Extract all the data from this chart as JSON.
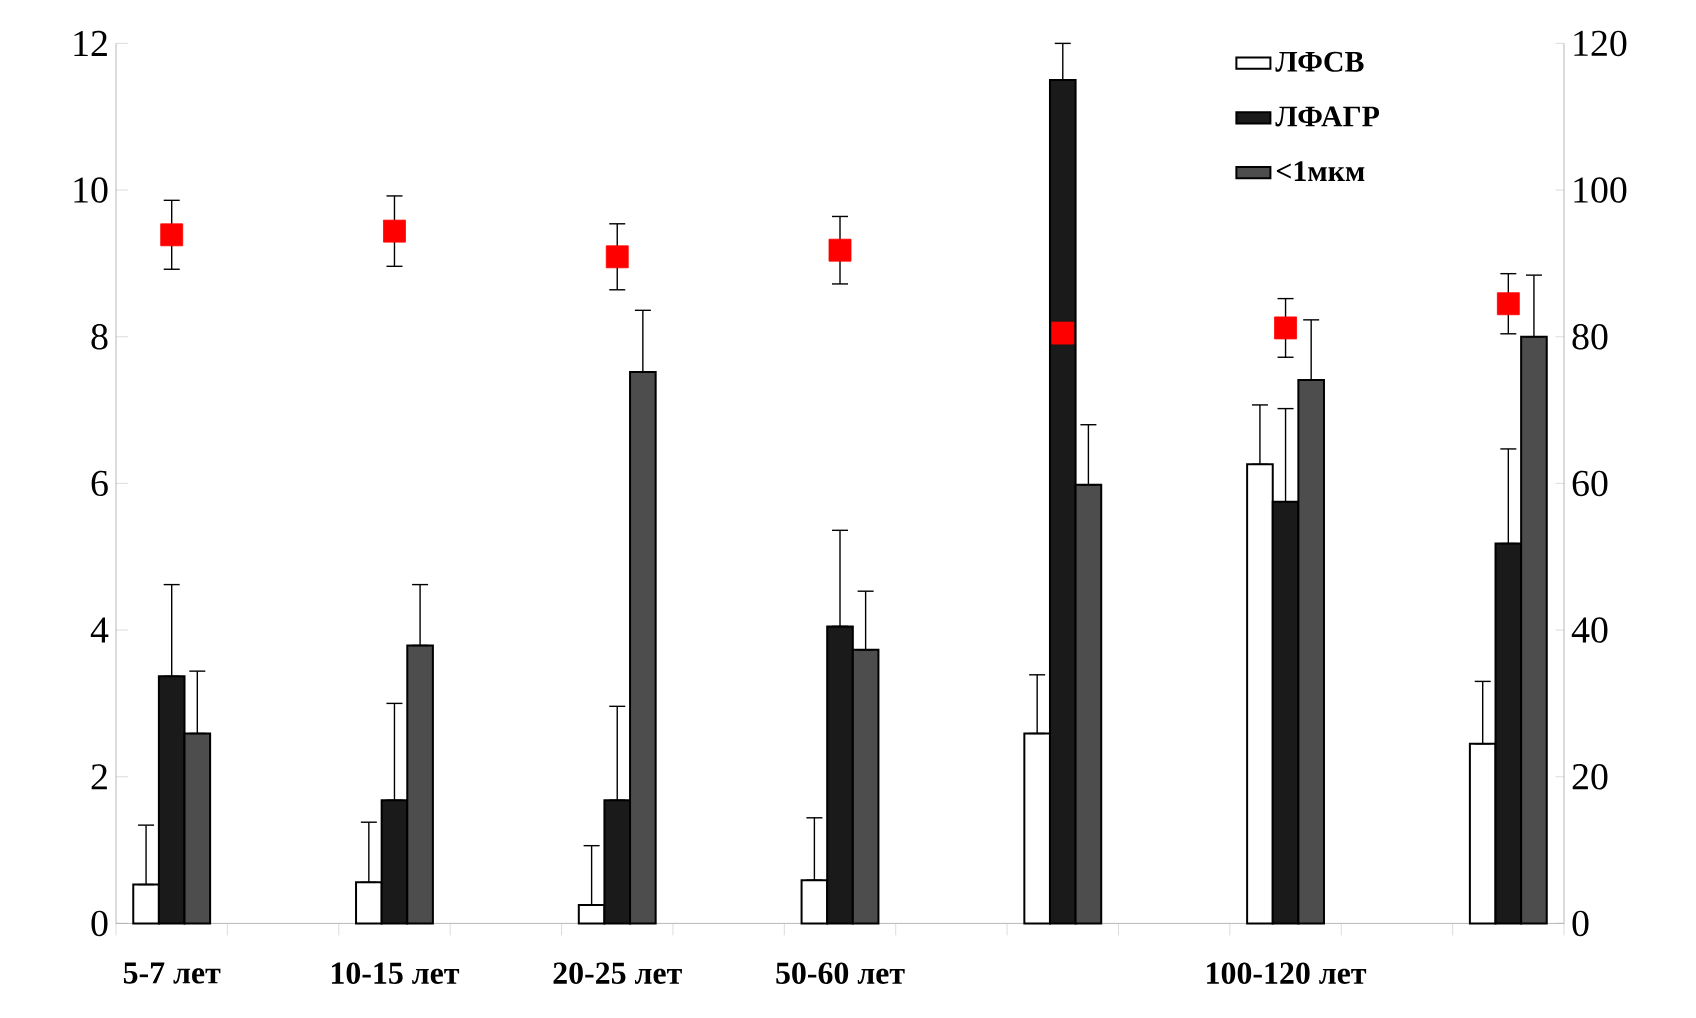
{
  "chart_data": {
    "type": "bar",
    "categories": [
      "5-7 лет",
      null,
      "10-15 лет",
      null,
      "20-25 лет",
      null,
      "50-60 лет",
      null,
      null,
      null,
      "100-120 лет",
      null,
      null
    ],
    "series": [
      {
        "name": "ЛФСВ",
        "color": "#ffffff",
        "values": [
          0.53,
          null,
          0.56,
          null,
          0.25,
          null,
          0.59,
          null,
          2.59,
          null,
          6.26,
          null,
          2.45
        ],
        "errors": [
          [
            0.53,
            1.34
          ],
          null,
          [
            0.56,
            1.38
          ],
          null,
          [
            0.25,
            1.06
          ],
          null,
          [
            0.59,
            1.44
          ],
          null,
          [
            2.59,
            3.39
          ],
          null,
          [
            6.26,
            7.07
          ],
          null,
          [
            2.45,
            3.3
          ]
        ]
      },
      {
        "name": "ЛФАГР",
        "color": "#1a1a1a",
        "values": [
          3.37,
          null,
          1.68,
          null,
          1.68,
          null,
          4.05,
          null,
          11.5,
          null,
          5.75,
          null,
          5.18
        ],
        "errors": [
          [
            3.37,
            4.62
          ],
          null,
          [
            1.68,
            3.0
          ],
          null,
          [
            1.68,
            2.96
          ],
          null,
          [
            4.05,
            5.36
          ],
          null,
          [
            11.5,
            12.0
          ],
          null,
          [
            5.75,
            7.02
          ],
          null,
          [
            5.18,
            6.47
          ]
        ]
      },
      {
        "name": "<1мкм",
        "color": "#4d4d4d",
        "values": [
          2.59,
          null,
          3.79,
          null,
          7.52,
          null,
          3.73,
          null,
          5.98,
          null,
          7.41,
          null,
          8.0
        ],
        "errors": [
          [
            2.59,
            3.44
          ],
          null,
          [
            3.79,
            4.62
          ],
          null,
          [
            7.52,
            8.36
          ],
          null,
          [
            3.73,
            4.53
          ],
          null,
          [
            5.98,
            6.8
          ],
          null,
          [
            7.41,
            8.23
          ],
          null,
          [
            8.0,
            8.84
          ]
        ]
      },
      {
        "type": "scatter",
        "axis": "y2",
        "marker": "square",
        "color": "#ff0000",
        "values": [
          93.9,
          null,
          94.4,
          null,
          90.9,
          null,
          91.8,
          null,
          80.5,
          null,
          81.2,
          null,
          84.5
        ],
        "errors": [
          [
            89.2,
            98.6
          ],
          null,
          [
            89.6,
            99.2
          ],
          null,
          [
            86.4,
            95.4
          ],
          null,
          [
            87.2,
            96.4
          ],
          null,
          null,
          null,
          [
            77.2,
            85.2
          ],
          null,
          [
            80.4,
            88.6
          ]
        ]
      }
    ],
    "ylim": [
      0,
      12
    ],
    "yticks": [
      0,
      2,
      4,
      6,
      8,
      10,
      12
    ],
    "y2lim": [
      0,
      120
    ],
    "y2ticks": [
      0,
      20,
      40,
      60,
      80,
      100,
      120
    ],
    "legend": "top right",
    "grid": false
  }
}
